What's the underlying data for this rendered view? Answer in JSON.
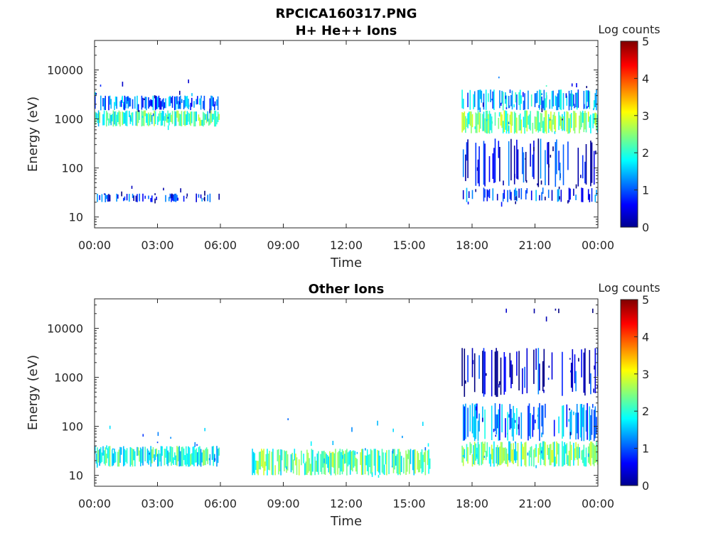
{
  "figure_title": "RPCICA160317.PNG",
  "colors": {
    "axis": "#262626",
    "colormap": "jet"
  },
  "chart_data": [
    {
      "type": "heatmap",
      "title": "H+ He++ Ions",
      "xlabel": "Time",
      "ylabel": "Energy (eV)",
      "xlim": [
        "00:00",
        "24:00"
      ],
      "ylim": [
        6,
        40000
      ],
      "yscale": "log",
      "grid": false,
      "x_ticks": [
        "00:00",
        "03:00",
        "06:00",
        "09:00",
        "12:00",
        "15:00",
        "18:00",
        "21:00",
        "00:00"
      ],
      "y_ticks": [
        {
          "value": 10,
          "label": "10"
        },
        {
          "value": 100,
          "label": "100"
        },
        {
          "value": 1000,
          "label": "1000"
        },
        {
          "value": 10000,
          "label": "10000"
        }
      ],
      "colorbar": {
        "label": "Log counts",
        "range": [
          0,
          5
        ],
        "ticks": [
          "0",
          "1",
          "2",
          "3",
          "4",
          "5"
        ],
        "colormap": "jet"
      },
      "activity_bands": [
        {
          "start": "00:00",
          "end": "06:00",
          "energy_low": 700,
          "energy_high": 1500,
          "level": 2.2
        },
        {
          "start": "00:00",
          "end": "06:00",
          "energy_low": 20,
          "energy_high": 30,
          "level": 0.8
        },
        {
          "start": "00:00",
          "end": "06:00",
          "energy_low": 1500,
          "energy_high": 3000,
          "level": 1.2
        },
        {
          "start": "17:30",
          "end": "24:00",
          "energy_low": 500,
          "energy_high": 1500,
          "level": 2.4
        },
        {
          "start": "17:30",
          "end": "24:00",
          "energy_low": 1500,
          "energy_high": 4000,
          "level": 1.5
        },
        {
          "start": "17:30",
          "end": "24:00",
          "energy_low": 20,
          "energy_high": 40,
          "level": 1.0
        },
        {
          "start": "17:30",
          "end": "24:00",
          "energy_low": 40,
          "energy_high": 400,
          "level": 0.7
        }
      ]
    },
    {
      "type": "heatmap",
      "title": "Other Ions",
      "xlabel": "Time",
      "ylabel": "Energy (eV)",
      "xlim": [
        "00:00",
        "24:00"
      ],
      "ylim": [
        6,
        40000
      ],
      "yscale": "log",
      "grid": false,
      "x_ticks": [
        "00:00",
        "03:00",
        "06:00",
        "09:00",
        "12:00",
        "15:00",
        "18:00",
        "21:00",
        "00:00"
      ],
      "y_ticks": [
        {
          "value": 10,
          "label": "10"
        },
        {
          "value": 100,
          "label": "100"
        },
        {
          "value": 1000,
          "label": "1000"
        },
        {
          "value": 10000,
          "label": "10000"
        }
      ],
      "colorbar": {
        "label": "Log counts",
        "range": [
          0,
          5
        ],
        "ticks": [
          "0",
          "1",
          "2",
          "3",
          "4",
          "5"
        ],
        "colormap": "jet"
      },
      "activity_bands": [
        {
          "start": "00:00",
          "end": "06:00",
          "energy_low": 15,
          "energy_high": 40,
          "level": 2.0
        },
        {
          "start": "07:30",
          "end": "16:00",
          "energy_low": 10,
          "energy_high": 35,
          "level": 2.3
        },
        {
          "start": "17:30",
          "end": "24:00",
          "energy_low": 15,
          "energy_high": 50,
          "level": 2.3
        },
        {
          "start": "17:30",
          "end": "24:00",
          "energy_low": 50,
          "energy_high": 300,
          "level": 1.3
        },
        {
          "start": "17:30",
          "end": "24:00",
          "energy_low": 400,
          "energy_high": 4000,
          "level": 0.6
        }
      ]
    }
  ]
}
